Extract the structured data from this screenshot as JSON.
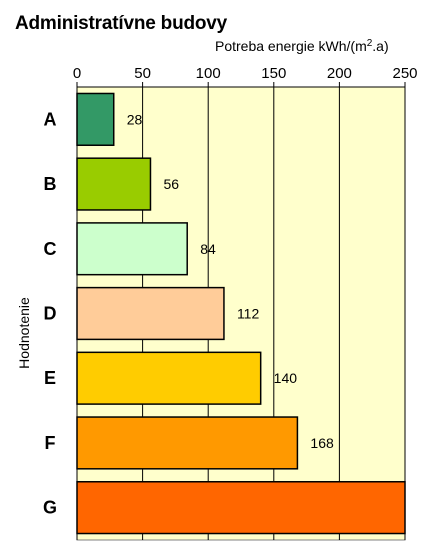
{
  "chart_data": {
    "type": "bar",
    "orientation": "horizontal",
    "title": "Administratívne budovy",
    "xlabel": "Potreba energie kWh/(m².a)",
    "ylabel": "Hodnotenie",
    "xlim": [
      0,
      250
    ],
    "xticks": [
      "0",
      "50",
      "100",
      "150",
      "200",
      "250"
    ],
    "xtick_values": [
      0,
      50,
      100,
      150,
      200,
      250
    ],
    "x_axis_position": "top",
    "grid": true,
    "plot_background": "#ffffcc",
    "categories": [
      "A",
      "B",
      "C",
      "D",
      "E",
      "F",
      "G"
    ],
    "values": [
      28,
      56,
      84,
      112,
      140,
      168,
      250
    ],
    "data_labels": [
      "28",
      "56",
      "84",
      "112",
      "140",
      "168",
      ""
    ],
    "colors": [
      "#339966",
      "#99cc00",
      "#ccffcc",
      "#ffcc99",
      "#ffcc00",
      "#ff9900",
      "#ff6600"
    ]
  }
}
